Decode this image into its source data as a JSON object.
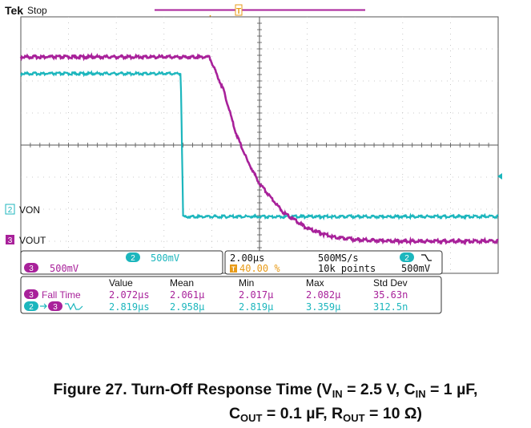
{
  "header": {
    "brand": "Tek",
    "status": "Stop",
    "trigger_marker": "T"
  },
  "channels": {
    "ch2": {
      "number": "2",
      "label": "VON",
      "color": "#1cb6bd",
      "scale": "500mV"
    },
    "ch3": {
      "number": "3",
      "label": "VOUT",
      "color": "#a8219a",
      "scale": "500mV"
    }
  },
  "acquisition": {
    "timebase": "2.00µs",
    "sample_rate": "500MS/s",
    "trigger_position": "40.00 %",
    "record_length": "10k points",
    "trigger_channel": "2",
    "trigger_level": "500mV"
  },
  "measurements": {
    "headers": [
      "Value",
      "Mean",
      "Min",
      "Max",
      "Std Dev"
    ],
    "rows": [
      {
        "channel": "3",
        "name": "Fall Time",
        "value": "2.072µs",
        "mean": "2.061µ",
        "min": "2.017µ",
        "max": "2.082µ",
        "std": "35.63n"
      },
      {
        "channel": "2",
        "channel_to": "3",
        "name": "",
        "value": "2.819µs",
        "mean": "2.958µ",
        "min": "2.819µ",
        "max": "3.359µ",
        "std": "312.5n"
      }
    ]
  },
  "chart_data": {
    "type": "line",
    "x_unit": "µs",
    "xlim": [
      -8,
      12
    ],
    "y_unit": "div",
    "ylim": [
      -4,
      4
    ],
    "grid": true,
    "series": [
      {
        "name": "VON",
        "channel": "2",
        "x": [
          -8,
          -1.3,
          -1.2,
          12
        ],
        "y": [
          2.23,
          2.23,
          -2.23,
          -2.23
        ]
      },
      {
        "name": "VOUT",
        "channel": "3",
        "x": [
          -8,
          -0.1,
          0.5,
          1,
          1.5,
          2,
          3,
          4,
          5,
          6,
          8,
          12
        ],
        "y": [
          2.75,
          2.75,
          1.7,
          0.4,
          -0.5,
          -1.2,
          -2.1,
          -2.6,
          -2.85,
          -2.95,
          -3.0,
          -3.0
        ]
      }
    ]
  },
  "caption": {
    "line1": "Figure 27. Turn-Off Response Time (V",
    "vin_sub": "IN",
    "vin_val": " = 2.5 V, C",
    "cin_sub": "IN",
    "cin_val": " = 1 µF,",
    "line2": "C",
    "cout_sub": "OUT",
    "cout_val": " = 0.1 µF, R",
    "rout_sub": "OUT",
    "rout_val": " = 10 Ω)"
  }
}
